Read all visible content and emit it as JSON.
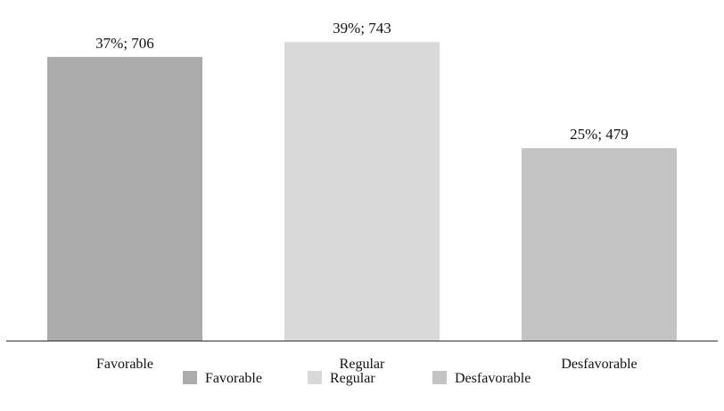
{
  "chart_data": {
    "type": "bar",
    "categories": [
      "Favorable",
      "Regular",
      "Desfavorable"
    ],
    "values": [
      706,
      743,
      479
    ],
    "percentages": [
      "37%",
      "39%",
      "25%"
    ],
    "data_labels": [
      "37%; 706",
      "39%; 743",
      "25%; 479"
    ],
    "colors": [
      "#ababab",
      "#d9d9d9",
      "#c4c4c4"
    ],
    "ylim": [
      0,
      790
    ],
    "grid": false,
    "legend": {
      "position": "bottom",
      "entries": [
        "Favorable",
        "Regular",
        "Desfavorable"
      ]
    }
  }
}
